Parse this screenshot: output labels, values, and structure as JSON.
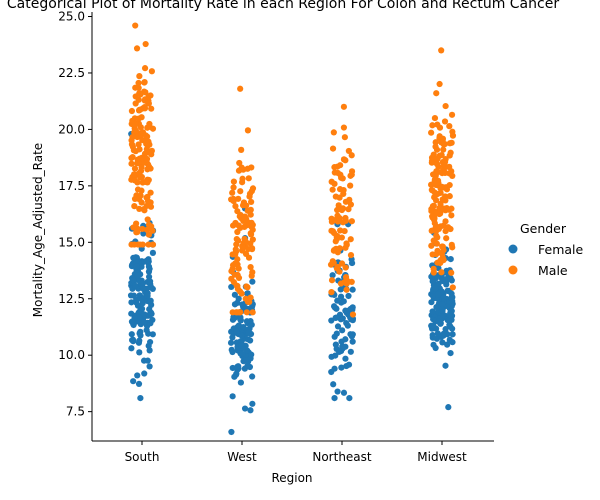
{
  "chart_data": {
    "type": "scatter",
    "title": "Categorical Plot of Mortality Rate in each Region For Colon and Rectum Cancer",
    "xlabel": "Region",
    "ylabel": "Mortality_Age_Adjusted_Rate",
    "categories": [
      "South",
      "West",
      "Northeast",
      "Midwest"
    ],
    "ylim": [
      6.2,
      25.2
    ],
    "yticks": [
      7.5,
      10.0,
      12.5,
      15.0,
      17.5,
      20.0,
      22.5,
      25.0
    ],
    "ytick_labels": [
      "7.5",
      "10.0",
      "12.5",
      "15.0",
      "17.5",
      "20.0",
      "22.5",
      "25.0"
    ],
    "grid": false,
    "legend": {
      "title": "Gender",
      "placement": "right"
    },
    "series": [
      {
        "name": "Female",
        "color": "#1f77b4",
        "groups": [
          {
            "category": "South",
            "count": 150,
            "min": 8.1,
            "max": 19.8,
            "center": 12.6,
            "spread": 1.6
          },
          {
            "category": "West",
            "count": 110,
            "min": 6.6,
            "max": 16.5,
            "center": 11.0,
            "spread": 1.3
          },
          {
            "category": "Northeast",
            "count": 85,
            "min": 8.1,
            "max": 15.8,
            "center": 11.8,
            "spread": 1.6
          },
          {
            "category": "Midwest",
            "count": 150,
            "min": 7.7,
            "max": 15.5,
            "center": 12.4,
            "spread": 1.1
          }
        ]
      },
      {
        "name": "Male",
        "color": "#ff7f0e",
        "groups": [
          {
            "category": "South",
            "count": 150,
            "min": 14.9,
            "max": 24.6,
            "center": 18.6,
            "spread": 2.2
          },
          {
            "category": "West",
            "count": 110,
            "min": 11.9,
            "max": 21.8,
            "center": 15.4,
            "spread": 1.8
          },
          {
            "category": "Northeast",
            "count": 85,
            "min": 11.8,
            "max": 21.0,
            "center": 15.8,
            "spread": 2.0
          },
          {
            "category": "Midwest",
            "count": 150,
            "min": 13.0,
            "max": 23.5,
            "center": 17.2,
            "spread": 1.9
          }
        ]
      }
    ]
  }
}
